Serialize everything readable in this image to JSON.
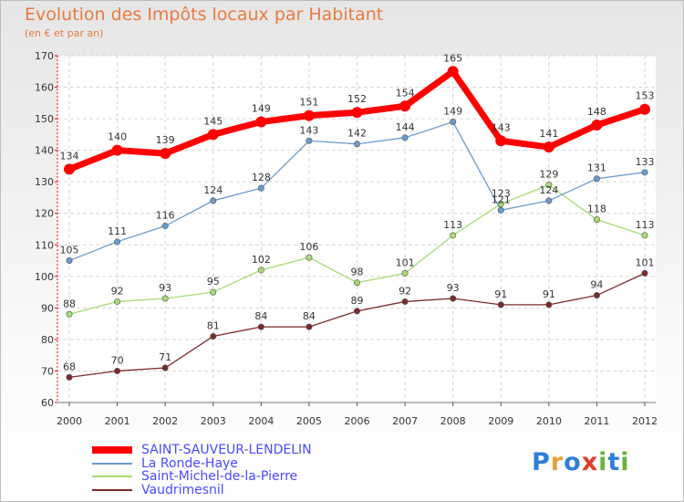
{
  "header": {
    "title": "Evolution des Impôts locaux par Habitant",
    "subtitle": "(en € et par an)"
  },
  "logo": {
    "text": "Proxiti",
    "letters": [
      "P",
      "r",
      "o",
      "x",
      "i",
      "t",
      "i"
    ],
    "colors": [
      "#2f7fd6",
      "#e8a23a",
      "#2f7fd6",
      "#e23b2b",
      "#6ab33d",
      "#2f7fd6",
      "#6ab33d"
    ]
  },
  "chart_data": {
    "type": "line",
    "title": "Evolution des Impôts locaux par Habitant",
    "subtitle": "(en € et par an)",
    "xlabel": "",
    "ylabel": "",
    "categories": [
      "2000",
      "2001",
      "2002",
      "2003",
      "2004",
      "2005",
      "2006",
      "2007",
      "2008",
      "2009",
      "2010",
      "2011",
      "2012"
    ],
    "ylim": [
      60,
      170
    ],
    "yticks": [
      60,
      70,
      80,
      90,
      100,
      110,
      120,
      130,
      140,
      150,
      160,
      170
    ],
    "grid": true,
    "legend_position": "bottom-left",
    "series": [
      {
        "name": "SAINT-SAUVEUR-LENDELIN",
        "color": "#ff0000",
        "values": [
          134,
          140,
          139,
          145,
          149,
          151,
          152,
          154,
          165,
          143,
          141,
          148,
          153
        ]
      },
      {
        "name": "La Ronde-Haye",
        "color": "#6a9bcd",
        "values": [
          105,
          111,
          116,
          124,
          128,
          143,
          142,
          144,
          149,
          121,
          124,
          131,
          133
        ]
      },
      {
        "name": "Saint-Michel-de-la-Pierre",
        "color": "#a6dc72",
        "values": [
          88,
          92,
          93,
          95,
          102,
          106,
          98,
          101,
          113,
          123,
          129,
          118,
          113
        ]
      },
      {
        "name": "Vaudrimesnil",
        "color": "#7d2a2a",
        "values": [
          68,
          70,
          71,
          81,
          84,
          84,
          89,
          92,
          93,
          91,
          91,
          94,
          101
        ]
      }
    ]
  }
}
